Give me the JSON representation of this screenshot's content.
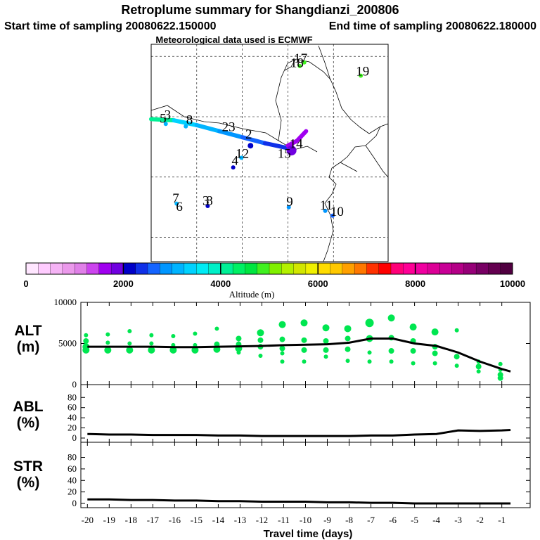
{
  "header": {
    "title": "Retroplume summary for Shangdianzi_200806",
    "start_label": "Start time of sampling 20080622.150000",
    "end_label": "End time of sampling 20080622.180000",
    "met_label": "Meteorological data used is ECMWF"
  },
  "map": {
    "labels": [
      {
        "text": "17",
        "lon": 115.4,
        "lat": 49.5
      },
      {
        "text": "18",
        "lon": 115.0,
        "lat": 49.1
      },
      {
        "text": "19",
        "lon": 122.2,
        "lat": 48.4
      },
      {
        "text": "3",
        "lon": 100.8,
        "lat": 44.8
      },
      {
        "text": "5",
        "lon": 100.3,
        "lat": 44.5
      },
      {
        "text": "8",
        "lon": 103.2,
        "lat": 44.4
      },
      {
        "text": "23",
        "lon": 107.5,
        "lat": 43.8
      },
      {
        "text": "2",
        "lon": 109.7,
        "lat": 43.2
      },
      {
        "text": "14",
        "lon": 114.9,
        "lat": 42.4
      },
      {
        "text": "12",
        "lon": 109.0,
        "lat": 41.6
      },
      {
        "text": "15",
        "lon": 113.6,
        "lat": 41.6
      },
      {
        "text": "4",
        "lon": 108.2,
        "lat": 41.0
      },
      {
        "text": "7",
        "lon": 101.7,
        "lat": 37.9
      },
      {
        "text": "6",
        "lon": 102.1,
        "lat": 37.2
      },
      {
        "text": "3",
        "lon": 105.0,
        "lat": 37.7
      },
      {
        "text": "8",
        "lon": 105.4,
        "lat": 37.7
      },
      {
        "text": "9",
        "lon": 114.2,
        "lat": 37.6
      },
      {
        "text": "11",
        "lon": 118.2,
        "lat": 37.3
      },
      {
        "text": "10",
        "lon": 119.4,
        "lat": 36.8
      }
    ]
  },
  "colorbar": {
    "ticks": [
      "0",
      "2000",
      "4000",
      "6000",
      "8000",
      "10000"
    ],
    "title": "Altitude (m)",
    "colors": [
      "#ffe6ff",
      "#ffccff",
      "#f5b3f5",
      "#eb99eb",
      "#e080e8",
      "#cc44ee",
      "#a000f0",
      "#7000e0",
      "#0000c8",
      "#1030e8",
      "#1464ff",
      "#0096ff",
      "#00b4ff",
      "#00d2ff",
      "#00ebf5",
      "#00f0c8",
      "#00f096",
      "#00f064",
      "#00e640",
      "#40f020",
      "#80f000",
      "#b4f000",
      "#d2e600",
      "#f0f000",
      "#ffdc00",
      "#ffc800",
      "#ffa000",
      "#ff7800",
      "#ff3200",
      "#ff0000",
      "#ff0078",
      "#ff0096",
      "#f000a0",
      "#dc0096",
      "#c80096",
      "#b40087",
      "#960078",
      "#780064",
      "#640050",
      "#500040"
    ]
  },
  "chart_data": [
    {
      "type": "scatter",
      "name": "ALT",
      "ylabel": "ALT (m)",
      "ylim": [
        0,
        10000
      ],
      "yticks": [
        "0",
        "5000",
        "10000"
      ],
      "xlim": [
        -20,
        0
      ],
      "x": [
        -20,
        -19,
        -18,
        -17,
        -16,
        -15,
        -14,
        -13,
        -12,
        -11,
        -10,
        -9,
        -8,
        -7,
        -6,
        -5,
        -4,
        -3,
        -2,
        -1,
        -0.6
      ],
      "line_values": [
        4600,
        4600,
        4600,
        4600,
        4550,
        4550,
        4600,
        4650,
        4700,
        4800,
        4850,
        4900,
        5100,
        5600,
        5600,
        5000,
        4700,
        3900,
        2800,
        1900,
        1600
      ],
      "points": [
        [
          -20,
          4200,
          4
        ],
        [
          -20,
          4600,
          4
        ],
        [
          -20,
          5300,
          3
        ],
        [
          -20,
          6000,
          2
        ],
        [
          -19,
          4200,
          4
        ],
        [
          -19,
          5100,
          2
        ],
        [
          -19,
          6100,
          2
        ],
        [
          -18,
          4200,
          4
        ],
        [
          -18,
          5000,
          2
        ],
        [
          -18,
          6500,
          2
        ],
        [
          -17,
          4200,
          4
        ],
        [
          -17,
          5000,
          2
        ],
        [
          -17,
          6000,
          2
        ],
        [
          -16,
          4200,
          4
        ],
        [
          -16,
          4800,
          2
        ],
        [
          -16,
          5900,
          2
        ],
        [
          -15,
          4200,
          4
        ],
        [
          -15,
          4800,
          2
        ],
        [
          -15,
          6200,
          2
        ],
        [
          -14,
          4300,
          4
        ],
        [
          -14,
          4900,
          3
        ],
        [
          -14,
          6800,
          2
        ],
        [
          -13,
          3900,
          2
        ],
        [
          -13,
          4400,
          4
        ],
        [
          -13,
          4900,
          3
        ],
        [
          -13,
          5600,
          3
        ],
        [
          -12,
          3500,
          2
        ],
        [
          -12,
          4600,
          3
        ],
        [
          -12,
          5400,
          3
        ],
        [
          -12,
          6300,
          4
        ],
        [
          -11,
          2800,
          2
        ],
        [
          -11,
          3800,
          2
        ],
        [
          -11,
          4400,
          3
        ],
        [
          -11,
          5500,
          3
        ],
        [
          -11,
          7300,
          4
        ],
        [
          -10,
          2800,
          2
        ],
        [
          -10,
          4200,
          3
        ],
        [
          -10,
          5400,
          3
        ],
        [
          -10,
          7500,
          4
        ],
        [
          -9,
          3400,
          2
        ],
        [
          -9,
          4200,
          3
        ],
        [
          -9,
          5300,
          3
        ],
        [
          -9,
          6900,
          4
        ],
        [
          -8,
          2900,
          2
        ],
        [
          -8,
          4300,
          3
        ],
        [
          -8,
          5600,
          3
        ],
        [
          -8,
          6800,
          4
        ],
        [
          -7,
          2800,
          2
        ],
        [
          -7,
          3900,
          2
        ],
        [
          -7,
          5600,
          4
        ],
        [
          -7,
          7500,
          5
        ],
        [
          -6,
          2800,
          2
        ],
        [
          -6,
          4100,
          3
        ],
        [
          -6,
          5700,
          3
        ],
        [
          -6,
          8100,
          4
        ],
        [
          -5,
          2600,
          2
        ],
        [
          -5,
          4100,
          3
        ],
        [
          -5,
          5300,
          3
        ],
        [
          -5,
          7000,
          4
        ],
        [
          -4,
          2600,
          2
        ],
        [
          -4,
          3800,
          3
        ],
        [
          -4,
          4600,
          3
        ],
        [
          -4,
          6400,
          4
        ],
        [
          -3,
          2300,
          2
        ],
        [
          -3,
          3400,
          3
        ],
        [
          -3,
          6600,
          2
        ],
        [
          -2,
          1600,
          2
        ],
        [
          -2,
          2200,
          3
        ],
        [
          -2,
          2800,
          2
        ],
        [
          -1,
          800,
          3
        ],
        [
          -1,
          1200,
          3
        ],
        [
          -1,
          1800,
          2
        ],
        [
          -1,
          2500,
          2
        ]
      ]
    },
    {
      "type": "line",
      "name": "ABL",
      "ylabel": "ABL (%)",
      "ylim": [
        0,
        100
      ],
      "yticks": [
        "0",
        "20",
        "40",
        "60",
        "80"
      ],
      "xlim": [
        -20,
        0
      ],
      "x": [
        -20,
        -19,
        -18,
        -17,
        -16,
        -15,
        -14,
        -13,
        -12,
        -11,
        -10,
        -9,
        -8,
        -7,
        -6,
        -5,
        -4,
        -3,
        -2,
        -1,
        -0.6
      ],
      "values": [
        8,
        7,
        7,
        6,
        6,
        6,
        5,
        5,
        4,
        4,
        4,
        4,
        4,
        5,
        5,
        7,
        8,
        15,
        14,
        15,
        16
      ]
    },
    {
      "type": "line",
      "name": "STR",
      "ylabel": "STR (%)",
      "ylim": [
        0,
        100
      ],
      "yticks": [
        "0",
        "20",
        "40",
        "60",
        "80"
      ],
      "xlim": [
        -20,
        0
      ],
      "x": [
        -20,
        -19,
        -18,
        -17,
        -16,
        -15,
        -14,
        -13,
        -12,
        -11,
        -10,
        -9,
        -8,
        -7,
        -6,
        -5,
        -4,
        -3,
        -2,
        -1,
        -0.6
      ],
      "values": [
        7,
        7,
        6,
        6,
        5,
        5,
        4,
        4,
        3,
        3,
        3,
        2,
        2,
        1,
        1,
        0,
        0,
        0,
        0,
        0,
        0
      ]
    }
  ],
  "xaxis": {
    "label": "Travel time (days)",
    "ticks": [
      "-20",
      "-19",
      "-18",
      "-17",
      "-16",
      "-15",
      "-14",
      "-13",
      "-12",
      "-11",
      "-10",
      "-9",
      "-8",
      "-7",
      "-6",
      "-5",
      "-4",
      "-3",
      "-2",
      "-1"
    ]
  },
  "labels": {
    "alt1": "ALT",
    "alt2": "(m)",
    "abl1": "ABL",
    "abl2": "(%)",
    "str1": "STR",
    "str2": "(%)"
  }
}
